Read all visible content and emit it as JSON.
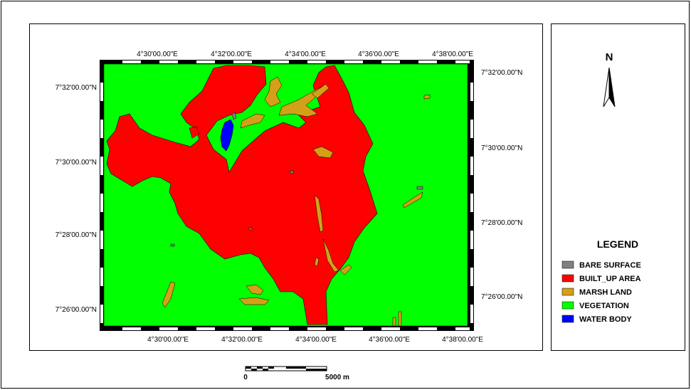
{
  "map": {
    "lon_ticks_top": [
      "4°30'00.00\"E",
      "4°32'00.00\"E",
      "4°34'00.00\"E",
      "4°36'00.00\"E",
      "4°38'00.00\"E"
    ],
    "lon_ticks_bottom": [
      "4°30'00.00\"E",
      "4°32'00.00\"E",
      "4°34'00.00\"E",
      "4°36'00.00\"E",
      "4°38'00.00\"E"
    ],
    "lat_ticks_left": [
      "7°32'00.00\"N",
      "7°30'00.00\"N",
      "7°28'00.00\"N",
      "7°26'00.00\"N"
    ],
    "lat_ticks_right": [
      "7°32'00.00\"N",
      "7°30'00.00\"N",
      "7°28'00.00\"N",
      "7°26'00.00\"N"
    ]
  },
  "north_arrow": {
    "label": "N"
  },
  "legend": {
    "title": "LEGEND",
    "items": [
      {
        "label": "BARE SURFACE",
        "color": "#808080"
      },
      {
        "label": "BUILT_UP AREA",
        "color": "#ff0000"
      },
      {
        "label": "MARSH LAND",
        "color": "#d4a017"
      },
      {
        "label": "VEGETATION",
        "color": "#00ff00"
      },
      {
        "label": "WATER BODY",
        "color": "#0000ff"
      }
    ]
  },
  "scale_bar": {
    "start_label": "0",
    "end_label": "5000 m"
  }
}
